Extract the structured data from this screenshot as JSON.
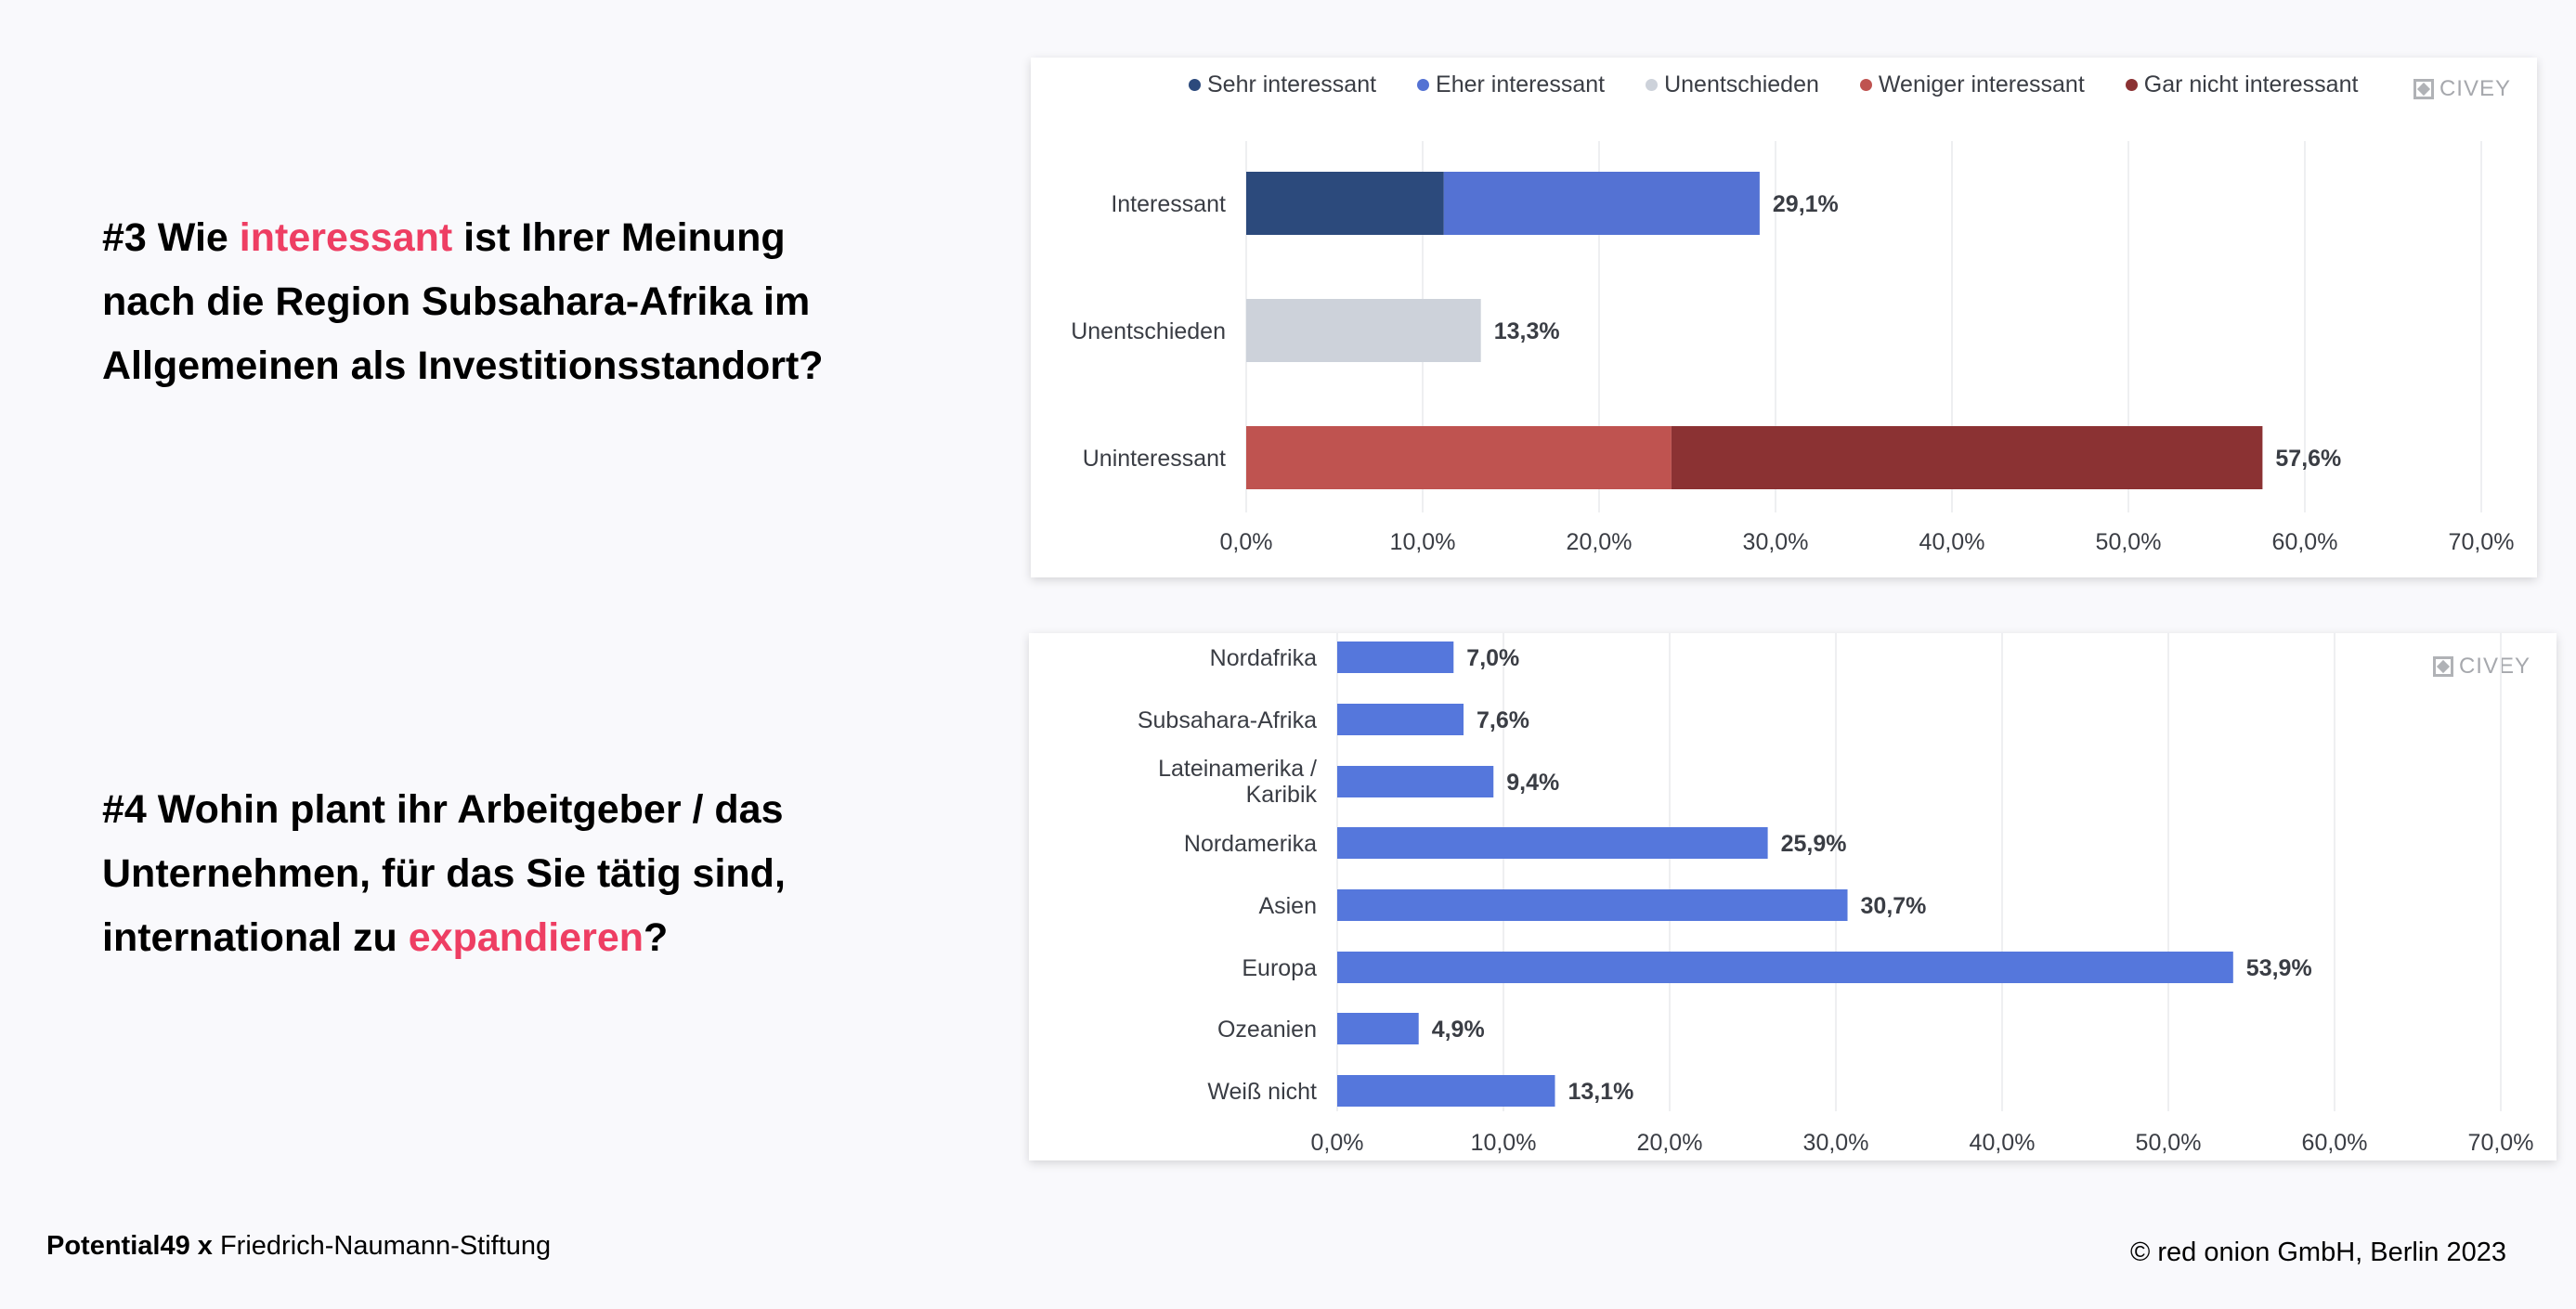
{
  "q3": {
    "prefix": "#3 Wie ",
    "highlight": "interessant",
    "rest_line1": " ist Ihrer Meinung",
    "line2": "nach die Region Subsahara-Afrika im",
    "line3": "Allgemeinen als Investitionsstandort?"
  },
  "q4": {
    "line1": "#4 Wohin plant ihr Arbeitgeber / das",
    "line2": "Unternehmen, für das Sie tätig sind,",
    "line3_prefix": "international zu ",
    "highlight": "expandieren",
    "line3_suffix": "?"
  },
  "brand": {
    "logo_text": "CIVEY"
  },
  "footer": {
    "left_bold": "Potential49 x",
    "left_rest": " Friedrich-Naumann-Stiftung",
    "right": "© red onion GmbH, Berlin 2023"
  },
  "chart_data": [
    {
      "type": "bar",
      "orientation": "horizontal",
      "stacked": true,
      "categories": [
        "Interessant",
        "Unentschieden",
        "Uninteressant"
      ],
      "series": [
        {
          "name": "Sehr interessant",
          "color": "#2c4a7c",
          "values": [
            11.2,
            0,
            0
          ]
        },
        {
          "name": "Eher interessant",
          "color": "#5472d3",
          "values": [
            17.9,
            0,
            0
          ]
        },
        {
          "name": "Unentschieden",
          "color": "#cdd2da",
          "values": [
            0,
            13.3,
            0
          ]
        },
        {
          "name": "Weniger interessant",
          "color": "#bf5350",
          "values": [
            0,
            0,
            24.1
          ]
        },
        {
          "name": "Gar nicht interessant",
          "color": "#8b3233",
          "values": [
            0,
            0,
            33.5
          ]
        }
      ],
      "totals": [
        "29,1%",
        "13,3%",
        "57,6%"
      ],
      "xlim": [
        0,
        70
      ],
      "xticks": [
        "0,0%",
        "10,0%",
        "20,0%",
        "30,0%",
        "40,0%",
        "50,0%",
        "60,0%",
        "70,0%"
      ],
      "legend_position": "top",
      "grid": true
    },
    {
      "type": "bar",
      "orientation": "horizontal",
      "categories": [
        "Nordafrika",
        "Subsahara-Afrika",
        "Lateinamerika / Karibik",
        "Nordamerika",
        "Asien",
        "Europa",
        "Ozeanien",
        "Weiß nicht"
      ],
      "values": [
        7.0,
        7.6,
        9.4,
        25.9,
        30.7,
        53.9,
        4.9,
        13.1
      ],
      "value_labels": [
        "7,0%",
        "7,6%",
        "9,4%",
        "25,9%",
        "30,7%",
        "53,9%",
        "4,9%",
        "13,1%"
      ],
      "color": "#5577dc",
      "xlim": [
        0,
        70
      ],
      "xticks": [
        "0,0%",
        "10,0%",
        "20,0%",
        "30,0%",
        "40,0%",
        "50,0%",
        "60,0%",
        "70,0%"
      ],
      "grid": true
    }
  ]
}
